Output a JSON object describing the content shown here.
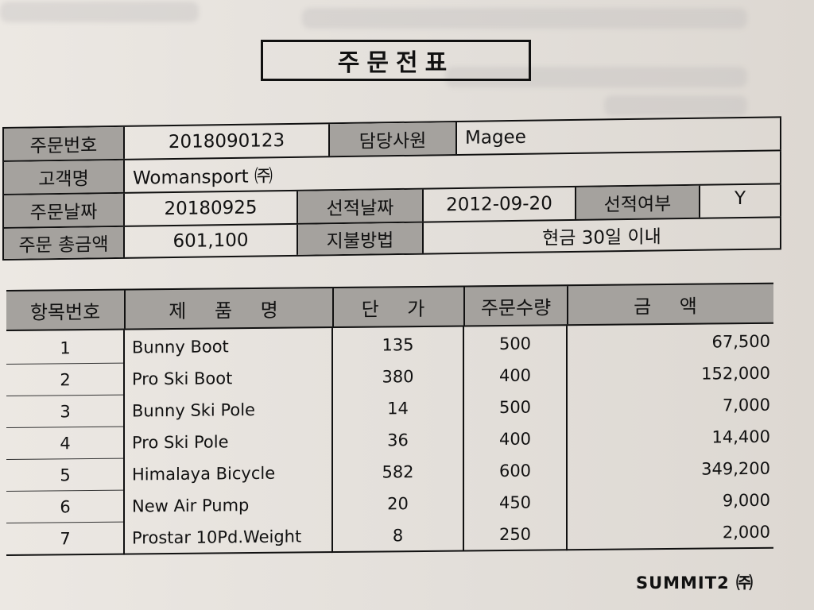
{
  "document": {
    "title": "주문전표",
    "footer": "SUMMIT2 ㈜"
  },
  "header": {
    "order_no_label": "주문번호",
    "order_no": "2018090123",
    "rep_label": "담당사원",
    "rep": "Magee",
    "customer_label": "고객명",
    "customer": "Womansport ㈜",
    "order_date_label": "주문날짜",
    "order_date": "20180925",
    "ship_date_label": "선적날짜",
    "ship_date": "2012-09-20",
    "shipped_label": "선적여부",
    "shipped": "Y",
    "total_label": "주문 총금액",
    "total": "601,100",
    "payment_label": "지불방법",
    "payment": "현금 30일 이내"
  },
  "items": {
    "columns": [
      "항목번호",
      "제 품 명",
      "단 가",
      "주문수량",
      "금 액"
    ],
    "rows": [
      {
        "no": "1",
        "name": "Bunny Boot",
        "price": "135",
        "qty": "500",
        "amount": "67,500"
      },
      {
        "no": "2",
        "name": "Pro Ski Boot",
        "price": "380",
        "qty": "400",
        "amount": "152,000"
      },
      {
        "no": "3",
        "name": "Bunny Ski Pole",
        "price": "14",
        "qty": "500",
        "amount": "7,000"
      },
      {
        "no": "4",
        "name": "Pro Ski Pole",
        "price": "36",
        "qty": "400",
        "amount": "14,400"
      },
      {
        "no": "5",
        "name": "Himalaya Bicycle",
        "price": "582",
        "qty": "600",
        "amount": "349,200"
      },
      {
        "no": "6",
        "name": "New Air Pump",
        "price": "20",
        "qty": "450",
        "amount": "9,000"
      },
      {
        "no": "7",
        "name": "Prostar 10Pd.Weight",
        "price": "8",
        "qty": "250",
        "amount": "2,000"
      }
    ]
  }
}
